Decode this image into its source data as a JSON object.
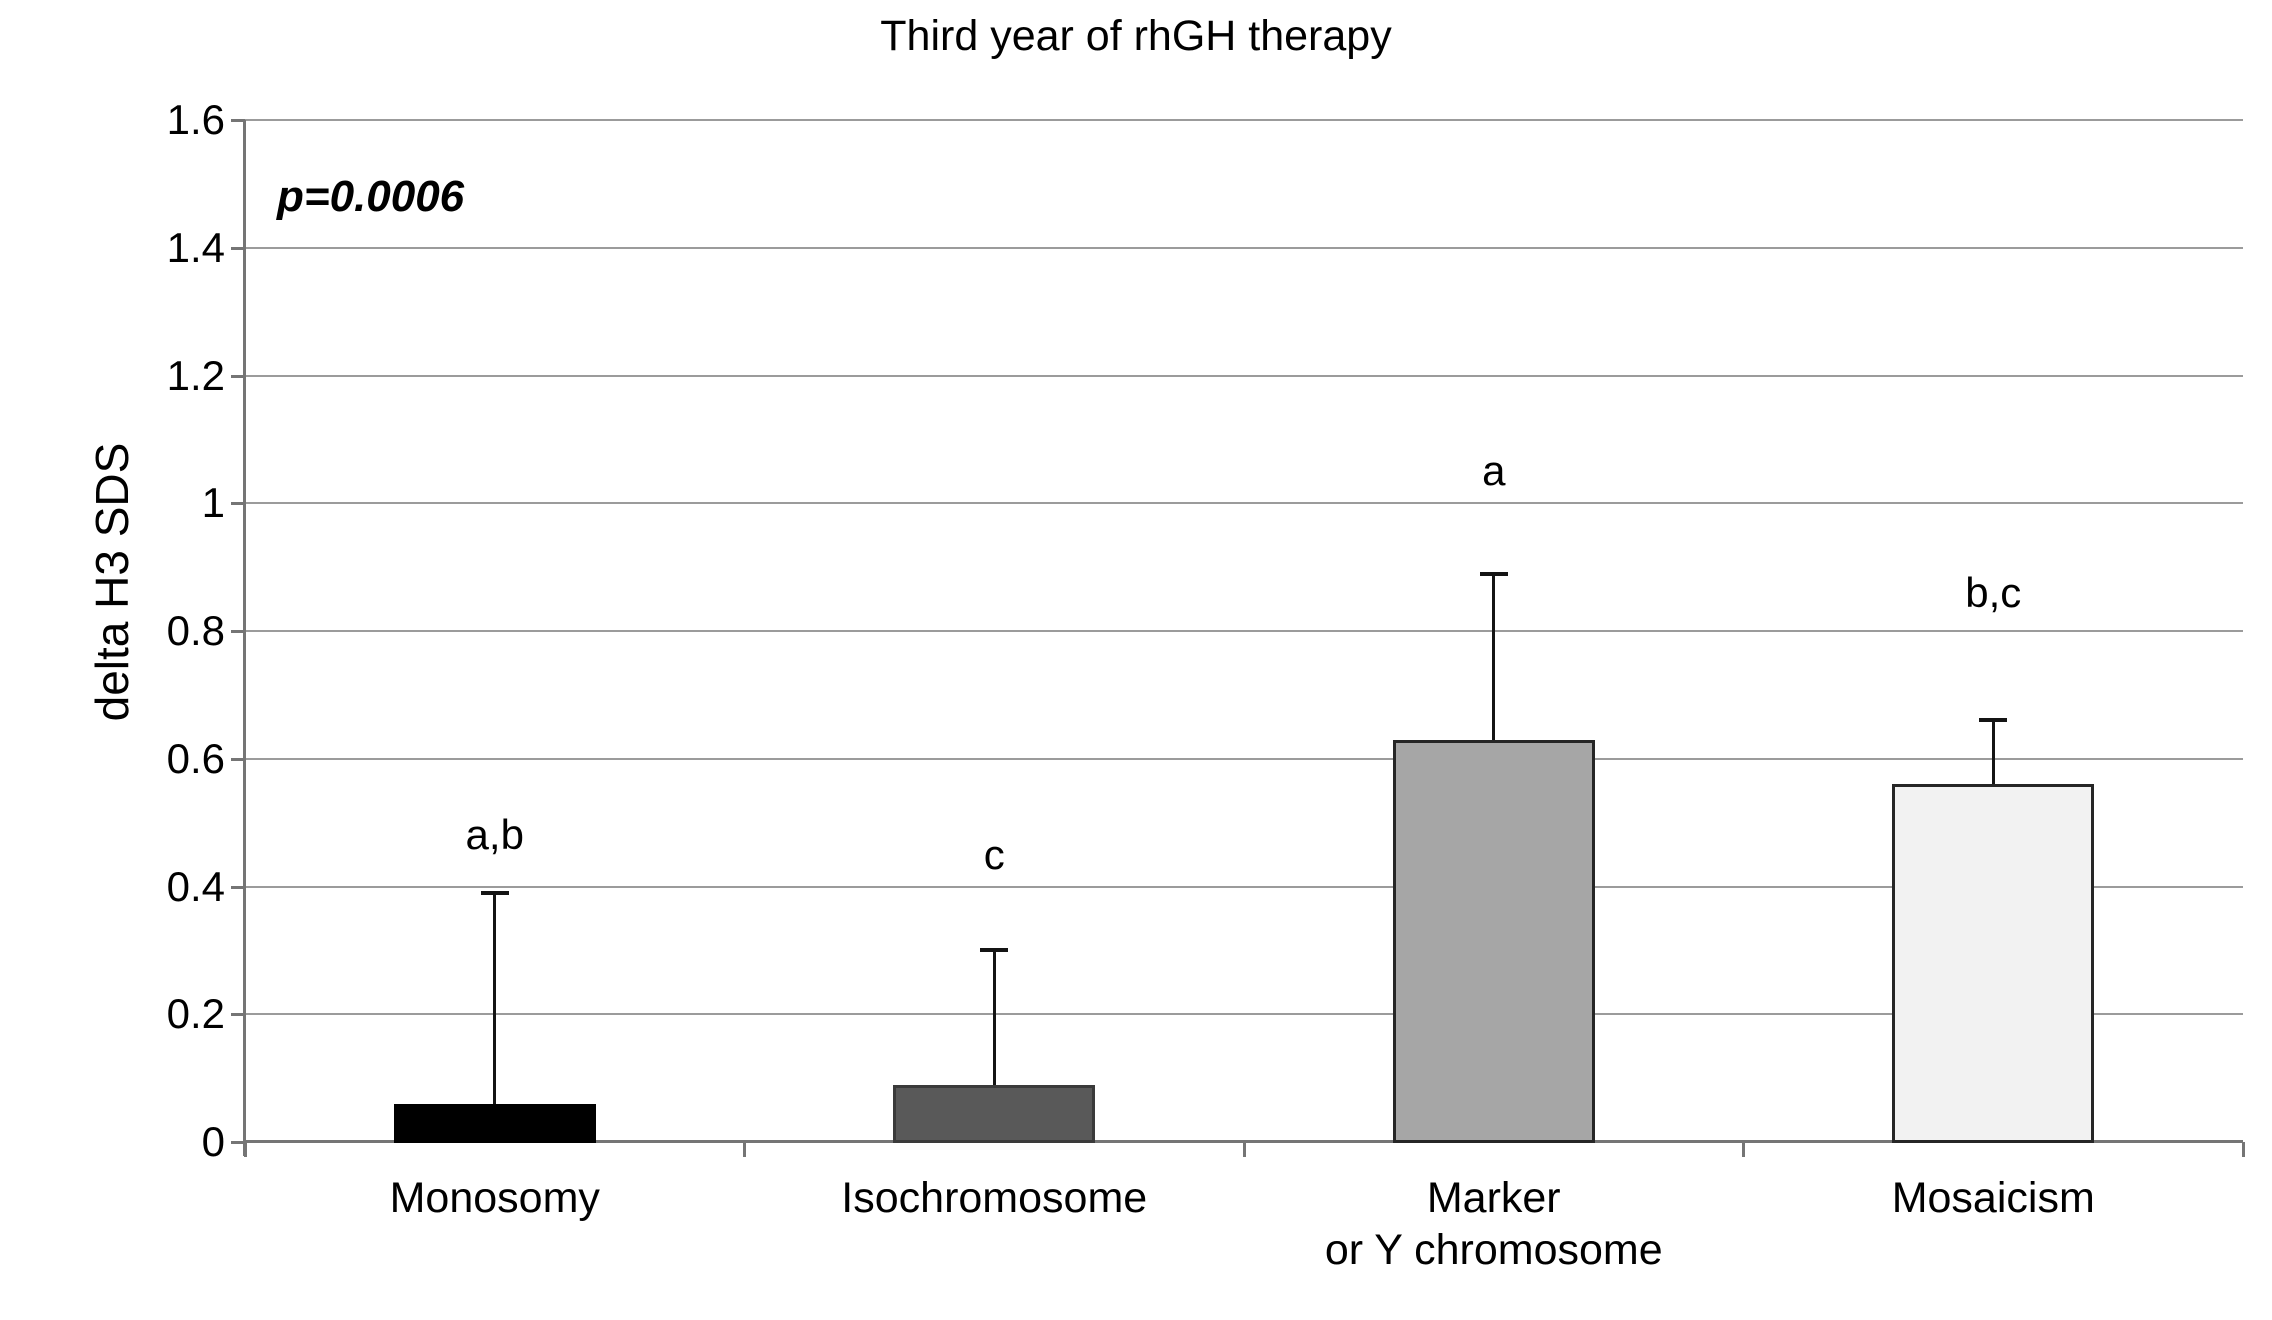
{
  "chart_data": {
    "type": "bar",
    "title": "Third year of rhGH therapy",
    "p_label": "p=0.0006",
    "ylabel": "delta H3 SDS",
    "xlabel": "",
    "ylim": [
      0,
      1.6
    ],
    "yticks": [
      "0",
      "0.2",
      "0.4",
      "0.6",
      "0.8",
      "1",
      "1.2",
      "1.4",
      "1.6"
    ],
    "ytick_values": [
      0,
      0.2,
      0.4,
      0.6,
      0.8,
      1.0,
      1.2,
      1.4,
      1.6
    ],
    "grid": true,
    "legend_position": "none",
    "categories": [
      "Monosomy",
      "Isochromosome",
      "Marker\nor Y chromosome",
      "Mosaicism"
    ],
    "values": [
      0.06,
      0.09,
      0.63,
      0.56
    ],
    "error_bar_tops": [
      0.39,
      0.3,
      0.89,
      0.66
    ],
    "annotations": [
      "a,b",
      "c",
      "a",
      "b,c"
    ],
    "annotation_y": [
      0.48,
      0.45,
      1.05,
      0.86
    ],
    "bar_fill_colors": [
      "#000000",
      "#595959",
      "#a6a6a6",
      "#f2f2f2"
    ],
    "bar_border_colors": [
      "#000000",
      "#3a3a3a",
      "#262626",
      "#262626"
    ]
  },
  "colors": {
    "background": "#ffffff",
    "gridline": "#9b9b9b",
    "axis": "#757575",
    "error_bar": "#141414",
    "text": "#000000"
  }
}
